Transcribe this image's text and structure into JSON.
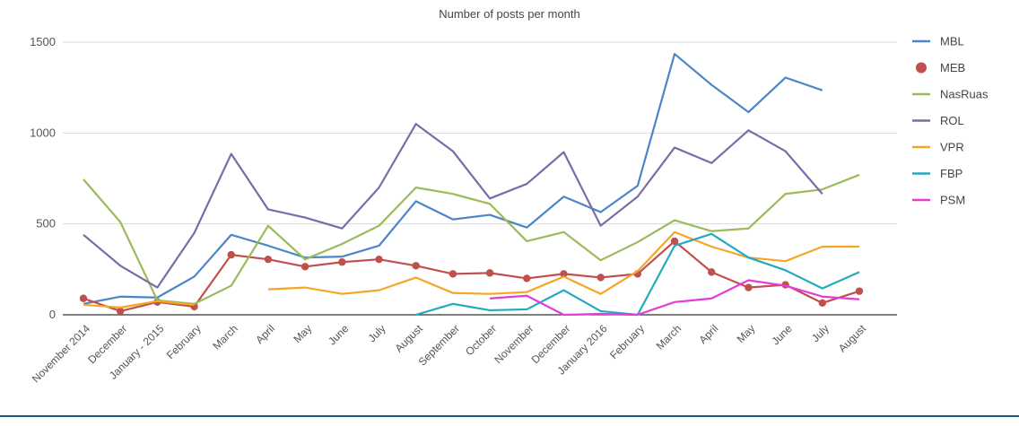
{
  "chart_data": {
    "type": "line",
    "title": "Number of posts per month",
    "xlabel": "",
    "ylabel": "",
    "ylim": [
      0,
      1600
    ],
    "yticks": [
      "0",
      "500",
      "1000",
      "1500"
    ],
    "grid": true,
    "legend_position": "right",
    "categories": [
      "November 2014",
      "December",
      "January - 2015",
      "February",
      "March",
      "April",
      "May",
      "June",
      "July",
      "August",
      "September",
      "October",
      "November",
      "December",
      "January 2016",
      "February",
      "March",
      "April",
      "May",
      "June",
      "July",
      "August"
    ],
    "series": [
      {
        "name": "MBL",
        "color": "#4a86c8",
        "marker": false,
        "values": [
          60,
          100,
          95,
          210,
          440,
          380,
          315,
          320,
          380,
          625,
          525,
          550,
          480,
          650,
          565,
          710,
          1435,
          1265,
          1115,
          1305,
          1235,
          null
        ]
      },
      {
        "name": "MEB",
        "color": "#c0504d",
        "marker": true,
        "values": [
          90,
          20,
          70,
          45,
          330,
          305,
          265,
          290,
          305,
          270,
          225,
          230,
          200,
          225,
          205,
          225,
          405,
          235,
          150,
          165,
          65,
          130
        ]
      },
      {
        "name": "NasRuas",
        "color": "#9bbb59",
        "marker": false,
        "values": [
          745,
          510,
          80,
          60,
          160,
          490,
          305,
          390,
          490,
          700,
          665,
          610,
          405,
          455,
          300,
          400,
          520,
          460,
          475,
          665,
          690,
          770
        ]
      },
      {
        "name": "ROL",
        "color": "#7b6ba8",
        "marker": false,
        "values": [
          440,
          270,
          150,
          450,
          885,
          580,
          535,
          475,
          700,
          1050,
          900,
          640,
          720,
          895,
          490,
          650,
          920,
          835,
          1015,
          900,
          665,
          null
        ]
      },
      {
        "name": "VPR",
        "color": "#f5a623",
        "marker": false,
        "values": [
          55,
          40,
          75,
          55,
          null,
          140,
          150,
          115,
          135,
          205,
          120,
          115,
          125,
          210,
          115,
          240,
          455,
          375,
          315,
          295,
          375,
          375
        ]
      },
      {
        "name": "FBP",
        "color": "#23a9c1",
        "marker": false,
        "values": [
          null,
          null,
          null,
          null,
          null,
          null,
          null,
          null,
          null,
          0,
          60,
          25,
          30,
          135,
          20,
          0,
          380,
          445,
          315,
          245,
          145,
          235
        ]
      },
      {
        "name": "PSM",
        "color": "#e53bd8",
        "marker": false,
        "values": [
          null,
          null,
          null,
          null,
          null,
          null,
          null,
          null,
          null,
          null,
          null,
          90,
          105,
          0,
          5,
          0,
          70,
          90,
          190,
          160,
          100,
          85
        ]
      }
    ]
  }
}
